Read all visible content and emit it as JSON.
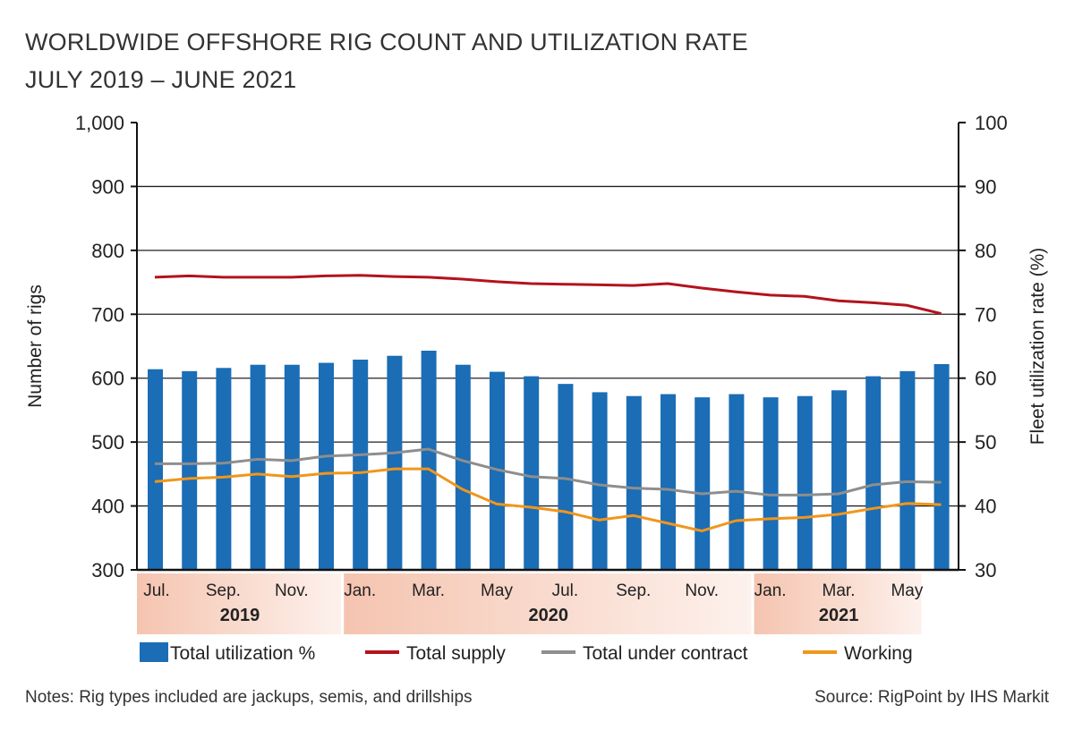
{
  "chart_data": {
    "type": "bar+line",
    "title": "WORLDWIDE OFFSHORE RIG COUNT AND UTILIZATION RATE",
    "subtitle": "JULY 2019 – JUNE 2021",
    "ylabel_left": "Number of rigs",
    "ylabel_right": "Fleet utilization rate (%)",
    "ylim_left": [
      300,
      1000
    ],
    "ylim_right": [
      30,
      100
    ],
    "yticks_left": [
      "300",
      "400",
      "500",
      "600",
      "700",
      "800",
      "900",
      "1,000"
    ],
    "yticks_right": [
      "30",
      "40",
      "50",
      "60",
      "70",
      "80",
      "90",
      "100"
    ],
    "grid": true,
    "legend_position": "bottom",
    "months": [
      "Jul 2019",
      "Aug 2019",
      "Sep 2019",
      "Oct 2019",
      "Nov 2019",
      "Dec 2019",
      "Jan 2020",
      "Feb 2020",
      "Mar 2020",
      "Apr 2020",
      "May 2020",
      "Jun 2020",
      "Jul 2020",
      "Aug 2020",
      "Sep 2020",
      "Oct 2020",
      "Nov 2020",
      "Dec 2020",
      "Jan 2021",
      "Feb 2021",
      "Mar 2021",
      "Apr 2021",
      "May 2021",
      "Jun 2021"
    ],
    "xtick_labels": [
      {
        "index": 0,
        "label": "Jul."
      },
      {
        "index": 2,
        "label": "Sep."
      },
      {
        "index": 4,
        "label": "Nov."
      },
      {
        "index": 6,
        "label": "Jan."
      },
      {
        "index": 8,
        "label": "Mar."
      },
      {
        "index": 10,
        "label": "May"
      },
      {
        "index": 12,
        "label": "Jul."
      },
      {
        "index": 14,
        "label": "Sep."
      },
      {
        "index": 16,
        "label": "Nov."
      },
      {
        "index": 18,
        "label": "Jan."
      },
      {
        "index": 20,
        "label": "Mar."
      },
      {
        "index": 22,
        "label": "May"
      }
    ],
    "year_bands": [
      {
        "label": "2019",
        "start": 0,
        "end": 5
      },
      {
        "label": "2020",
        "start": 6,
        "end": 17
      },
      {
        "label": "2021",
        "start": 18,
        "end": 23
      }
    ],
    "series": [
      {
        "name": "Total utilization %",
        "type": "bar",
        "axis": "right",
        "color": "#1b6db5",
        "values": [
          61.4,
          61.1,
          61.6,
          62.1,
          62.1,
          62.4,
          62.9,
          63.5,
          64.3,
          62.1,
          61.0,
          60.3,
          59.1,
          57.8,
          57.2,
          57.5,
          57.0,
          57.5,
          57.0,
          57.2,
          58.1,
          60.3,
          61.1,
          62.2
        ]
      },
      {
        "name": "Total supply",
        "type": "line",
        "axis": "left",
        "color": "#b3131d",
        "values": [
          758,
          760,
          758,
          758,
          758,
          760,
          761,
          759,
          758,
          755,
          751,
          748,
          747,
          746,
          745,
          748,
          741,
          735,
          730,
          728,
          721,
          718,
          714,
          701
        ]
      },
      {
        "name": "Total under contract",
        "type": "line",
        "axis": "left",
        "color": "#8e8e8e",
        "values": [
          466,
          466,
          467,
          473,
          471,
          478,
          480,
          483,
          489,
          471,
          457,
          446,
          443,
          433,
          428,
          426,
          419,
          423,
          417,
          417,
          419,
          433,
          438,
          437
        ]
      },
      {
        "name": "Working",
        "type": "line",
        "axis": "left",
        "color": "#f0961c",
        "values": [
          438,
          443,
          445,
          450,
          446,
          451,
          452,
          458,
          458,
          426,
          403,
          398,
          391,
          378,
          385,
          373,
          361,
          377,
          380,
          382,
          387,
          396,
          404,
          402
        ]
      }
    ]
  },
  "notes": "Notes: Rig types included are jackups, semis, and drillships",
  "source": "Source: RigPoint by IHS Markit",
  "colors": {
    "band": "#f5c4b0",
    "grid": "#222222"
  }
}
